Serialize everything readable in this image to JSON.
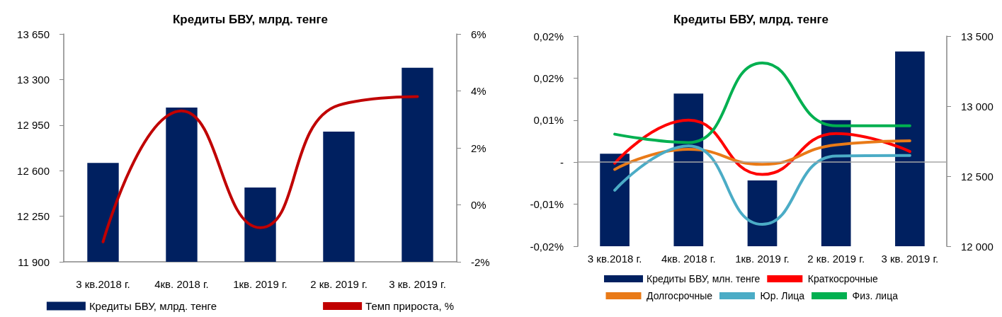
{
  "chart_data": [
    {
      "type": "bar",
      "title": "Кредиты БВУ, млрд. тенге",
      "categories": [
        "3 кв.2018 г.",
        "4кв. 2018 г.",
        "1кв. 2019 г.",
        "2 кв. 2019 г.",
        "3 кв. 2019 г."
      ],
      "series": [
        {
          "name": "Кредиты БВУ, млрд. тенге",
          "color": "#002060",
          "values": [
            12660,
            13085,
            12470,
            12900,
            13390
          ]
        },
        {
          "name": "Темп прироста, %",
          "type": "line",
          "axis": "y2",
          "color": "#c00000",
          "values": [
            -1.3,
            3.3,
            -0.8,
            3.5,
            3.8
          ]
        }
      ],
      "ylim": [
        11900,
        13650
      ],
      "yticks": [
        {
          "value": 11900,
          "label": "11 900"
        },
        {
          "value": 12250,
          "label": "12 250"
        },
        {
          "value": 12600,
          "label": "12 600"
        },
        {
          "value": 12950,
          "label": "12 950"
        },
        {
          "value": 13300,
          "label": "13 300"
        },
        {
          "value": 13650,
          "label": "13 650"
        }
      ],
      "y2lim": [
        -2,
        6
      ],
      "y2ticks": [
        {
          "value": -2,
          "label": "-2%"
        },
        {
          "value": 0,
          "label": "0%"
        },
        {
          "value": 2,
          "label": "2%"
        },
        {
          "value": 4,
          "label": "4%"
        },
        {
          "value": 6,
          "label": "6%"
        }
      ],
      "legend": "bottom",
      "marker": "none",
      "line_style": "solid",
      "grid": false
    },
    {
      "type": "line",
      "title": "Кредиты БВУ, млрд. тенге",
      "categories": [
        "3 кв.2018 г.",
        "4кв. 2018 г.",
        "1кв. 2019 г.",
        "2 кв. 2019 г.",
        "3 кв. 2019 г."
      ],
      "series": [
        {
          "name": "Кредиты БВУ, млн. тенге",
          "type": "bar",
          "axis": "y2",
          "color": "#002060",
          "values": [
            12660,
            13090,
            12470,
            12900,
            13390
          ]
        },
        {
          "name": "Краткосрочные",
          "color": "#ff0000",
          "values": [
            -0.0002,
            0.0075,
            -0.0022,
            0.0051,
            0.0019
          ]
        },
        {
          "name": "Долгосрочные",
          "color": "#e97a17",
          "values": [
            -0.0013,
            0.0023,
            -0.0004,
            0.0031,
            0.0038
          ]
        },
        {
          "name": "Юр. Лица",
          "color": "#4bacc6",
          "values": [
            -0.005,
            0.0029,
            -0.0111,
            0.0011,
            0.0012
          ]
        },
        {
          "name": "Физ. лица",
          "color": "#00b050",
          "values": [
            0.005,
            0.0035,
            0.0177,
            0.0065,
            0.0065
          ]
        }
      ],
      "ylim": [
        -0.015,
        0.0225
      ],
      "yticks": [
        {
          "value": -0.015,
          "label": "-0,02%"
        },
        {
          "value": -0.0075,
          "label": "-0,01%"
        },
        {
          "value": 0,
          "label": "-"
        },
        {
          "value": 0.0075,
          "label": "0,01%"
        },
        {
          "value": 0.015,
          "label": "0,02%"
        },
        {
          "value": 0.0225,
          "label": "0,02%"
        }
      ],
      "ref_lines": [
        {
          "axis": "y",
          "value": 0,
          "color": "#a6a6a6"
        }
      ],
      "y2lim": [
        12000,
        13500
      ],
      "y2ticks": [
        {
          "value": 12000,
          "label": "12 000"
        },
        {
          "value": 12500,
          "label": "12 500"
        },
        {
          "value": 13000,
          "label": "13 000"
        },
        {
          "value": 13500,
          "label": "13 500"
        }
      ],
      "legend": "bottom",
      "marker": "none",
      "line_style": "solid",
      "grid": false
    }
  ]
}
